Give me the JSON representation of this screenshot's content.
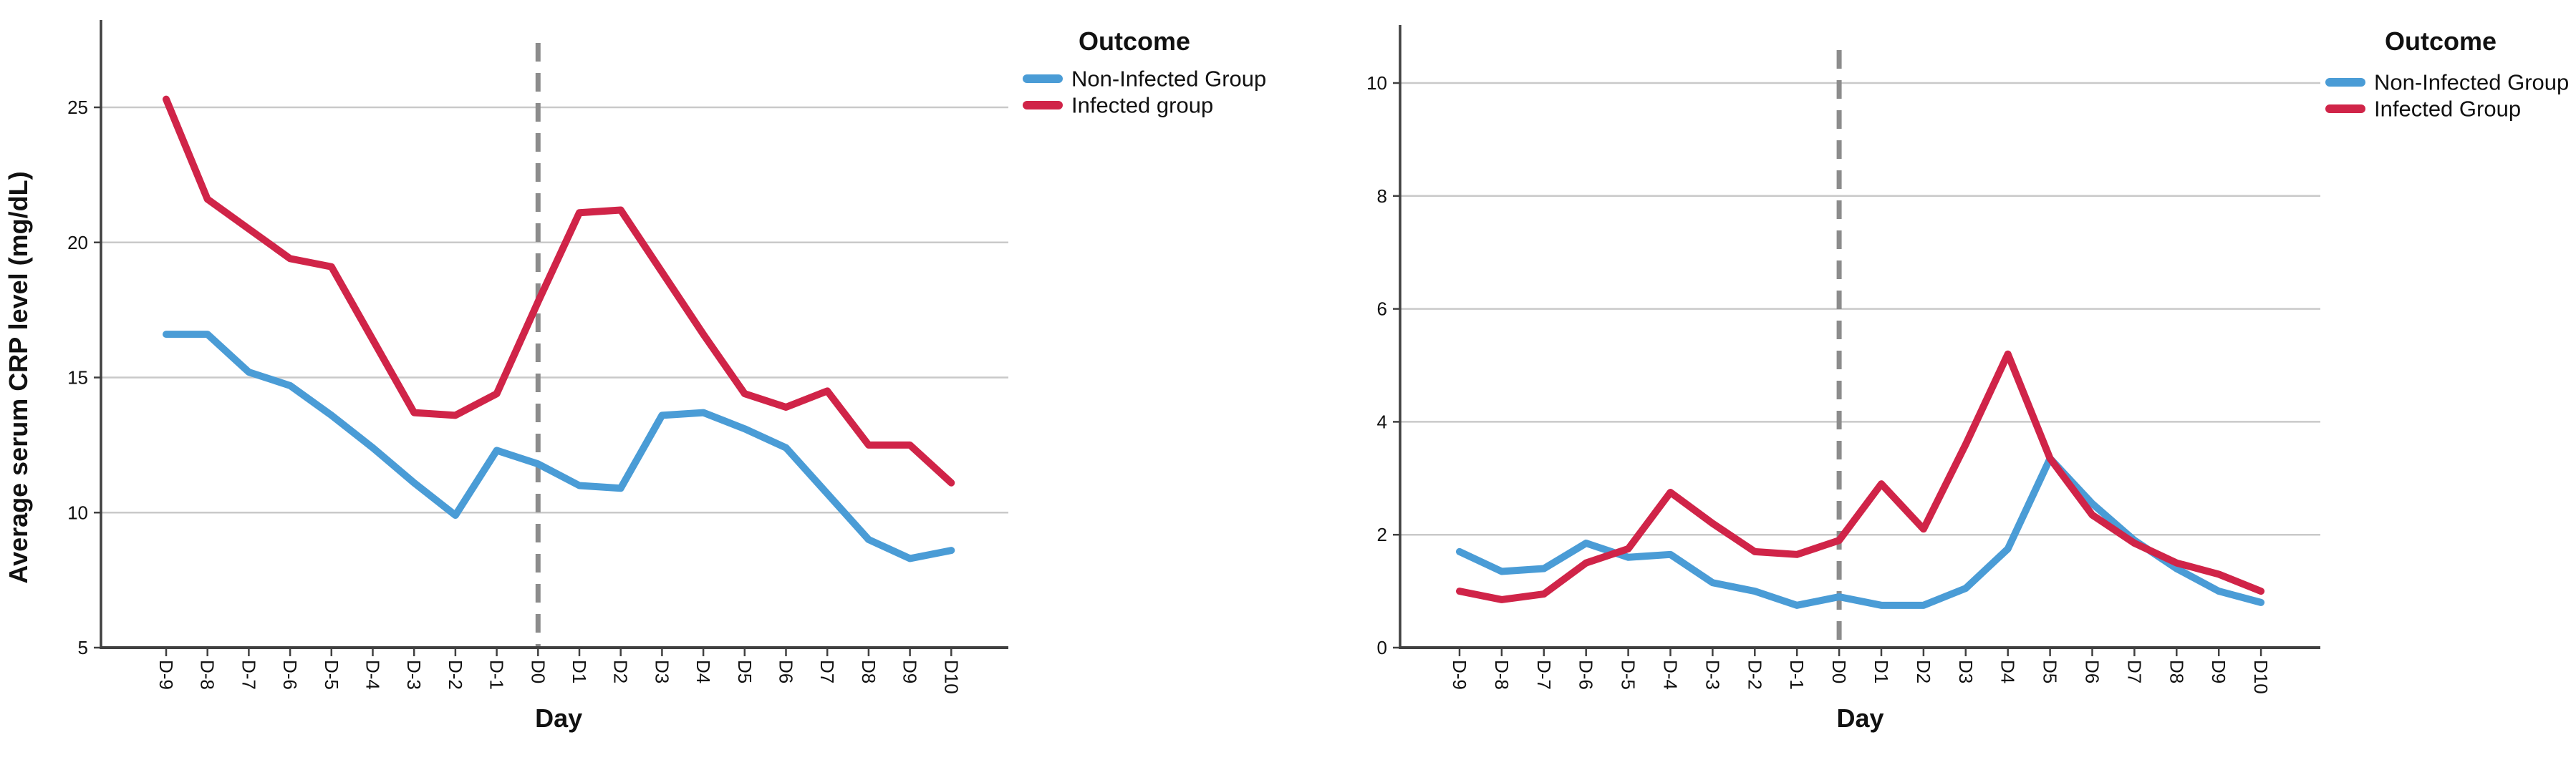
{
  "figure": {
    "background": "#ffffff"
  },
  "colors": {
    "non_infected": "#4a9cd6",
    "infected": "#d02448",
    "gridline": "#c9c9c9",
    "axis": "#404040",
    "reference_line": "#8c8c8c",
    "text": "#111111"
  },
  "chart_data": [
    {
      "type": "line",
      "title": "",
      "xlabel": "Day",
      "ylabel": "Average serum CRP level (mg/dL)",
      "legend_title": "Outcome",
      "legend_position": "right-top",
      "grid": "horizontal",
      "ylim": [
        5,
        25
      ],
      "yticks": [
        5,
        10,
        15,
        20,
        25
      ],
      "reference_line_x": "D0",
      "reference_line_style": "dashed",
      "categories": [
        "D-9",
        "D-8",
        "D-7",
        "D-6",
        "D-5",
        "D-4",
        "D-3",
        "D-2",
        "D-1",
        "D0",
        "D1",
        "D2",
        "D3",
        "D4",
        "D5",
        "D6",
        "D7",
        "D8",
        "D9",
        "D10"
      ],
      "series": [
        {
          "name": "Non-Infected Group",
          "color": "#4a9cd6",
          "values": [
            16.6,
            16.6,
            15.2,
            14.7,
            13.6,
            12.4,
            11.1,
            9.9,
            12.3,
            11.8,
            11.0,
            10.9,
            13.6,
            13.7,
            13.1,
            12.4,
            10.7,
            9.0,
            8.3,
            8.6
          ]
        },
        {
          "name": "Infected group",
          "color": "#d02448",
          "values": [
            25.3,
            21.6,
            20.5,
            19.4,
            19.1,
            16.4,
            13.7,
            13.6,
            14.4,
            17.8,
            21.1,
            21.2,
            18.9,
            16.6,
            14.4,
            13.9,
            14.5,
            12.5,
            12.5,
            11.1
          ]
        }
      ]
    },
    {
      "type": "line",
      "title": "",
      "xlabel": "Day",
      "ylabel": "",
      "legend_title": "Outcome",
      "legend_position": "right-top",
      "grid": "horizontal",
      "ylim": [
        0,
        10
      ],
      "yticks": [
        0,
        2,
        4,
        6,
        8,
        10
      ],
      "reference_line_x": "D0",
      "reference_line_style": "dashed",
      "categories": [
        "D-9",
        "D-8",
        "D-7",
        "D-6",
        "D-5",
        "D-4",
        "D-3",
        "D-2",
        "D-1",
        "D0",
        "D1",
        "D2",
        "D3",
        "D4",
        "D5",
        "D6",
        "D7",
        "D8",
        "D9",
        "D10"
      ],
      "series": [
        {
          "name": "Non-Infected Group",
          "color": "#4a9cd6",
          "values": [
            1.7,
            1.35,
            1.4,
            1.85,
            1.6,
            1.65,
            1.15,
            1.0,
            0.75,
            0.9,
            0.75,
            0.75,
            1.05,
            1.75,
            3.35,
            2.55,
            1.9,
            1.4,
            1.0,
            0.8
          ]
        },
        {
          "name": "Infected Group",
          "color": "#d02448",
          "values": [
            1.0,
            0.85,
            0.95,
            1.5,
            1.75,
            2.75,
            2.2,
            1.7,
            1.65,
            1.9,
            2.9,
            2.1,
            3.6,
            5.2,
            3.35,
            2.35,
            1.85,
            1.5,
            1.3,
            1.0
          ]
        }
      ]
    }
  ]
}
